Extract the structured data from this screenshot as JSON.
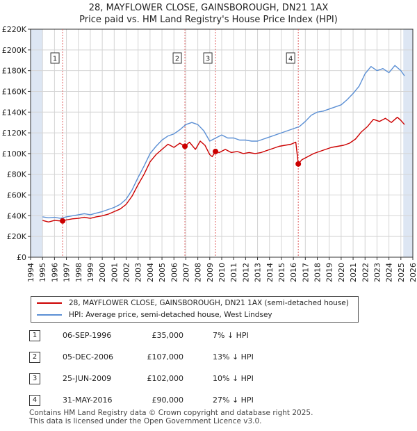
{
  "header": {
    "title": "28, MAYFLOWER CLOSE, GAINSBOROUGH, DN21 1AX",
    "subtitle": "Price paid vs. HM Land Registry's House Price Index (HPI)"
  },
  "colors": {
    "property": "#cc0000",
    "hpi": "#5b8fd4",
    "shade": "#dde6f3",
    "marker_line": "#e06060"
  },
  "chart_data": {
    "type": "line",
    "ylim": [
      0,
      220000
    ],
    "xlim": [
      1994.0,
      2026.0
    ],
    "y_ticks": [
      0,
      20000,
      40000,
      60000,
      80000,
      100000,
      120000,
      140000,
      160000,
      180000,
      200000,
      220000
    ],
    "y_tick_labels": [
      "£0",
      "£20K",
      "£40K",
      "£60K",
      "£80K",
      "£100K",
      "£120K",
      "£140K",
      "£160K",
      "£180K",
      "£200K",
      "£220K"
    ],
    "x_ticks": [
      1994,
      1995,
      1996,
      1997,
      1998,
      1999,
      2000,
      2001,
      2002,
      2003,
      2004,
      2005,
      2006,
      2007,
      2008,
      2009,
      2010,
      2011,
      2012,
      2013,
      2014,
      2015,
      2016,
      2017,
      2018,
      2019,
      2020,
      2021,
      2022,
      2023,
      2024,
      2025,
      2026
    ],
    "x_tick_labels": [
      "1994",
      "1995",
      "1996",
      "1997",
      "1998",
      "1999",
      "2000",
      "2001",
      "2002",
      "2003",
      "2004",
      "2005",
      "2006",
      "2007",
      "2008",
      "2009",
      "2010",
      "2011",
      "2012",
      "2013",
      "2014",
      "2015",
      "2016",
      "2017",
      "2018",
      "2019",
      "2020",
      "2021",
      "2022",
      "2023",
      "2024",
      "2025",
      "2026"
    ],
    "shaded_ranges": [
      [
        1994.0,
        1995.0
      ],
      [
        2025.2,
        2026.0
      ]
    ],
    "series": [
      {
        "name": "28, MAYFLOWER CLOSE, GAINSBOROUGH, DN21 1AX (semi-detached house)",
        "x": [
          1995.0,
          1995.5,
          1996.0,
          1996.5,
          1996.68,
          1997.0,
          1997.5,
          1998.0,
          1998.5,
          1999.0,
          1999.5,
          2000.0,
          2000.5,
          2001.0,
          2001.5,
          2002.0,
          2002.5,
          2003.0,
          2003.5,
          2004.0,
          2004.5,
          2005.0,
          2005.5,
          2006.0,
          2006.5,
          2006.92,
          2007.3,
          2007.8,
          2008.2,
          2008.6,
          2009.0,
          2009.2,
          2009.48,
          2009.8,
          2010.3,
          2010.8,
          2011.3,
          2011.8,
          2012.3,
          2012.8,
          2013.3,
          2013.8,
          2014.3,
          2014.8,
          2015.3,
          2015.8,
          2016.2,
          2016.41,
          2016.7,
          2017.2,
          2017.7,
          2018.2,
          2018.7,
          2019.2,
          2019.7,
          2020.2,
          2020.7,
          2021.2,
          2021.7,
          2022.2,
          2022.7,
          2023.2,
          2023.7,
          2024.2,
          2024.7,
          2025.0,
          2025.3
        ],
        "values": [
          35500,
          34000,
          35500,
          35000,
          35000,
          36000,
          37000,
          37500,
          38500,
          37500,
          39000,
          40000,
          41500,
          44000,
          46500,
          51000,
          59000,
          70000,
          80000,
          92000,
          99000,
          104000,
          109000,
          106000,
          110000,
          107000,
          111000,
          104000,
          112000,
          108000,
          99000,
          97000,
          102000,
          101000,
          104000,
          101000,
          102000,
          100000,
          101000,
          100000,
          101000,
          103000,
          105000,
          107000,
          108000,
          109000,
          111000,
          90000,
          94000,
          97000,
          100000,
          102000,
          104000,
          106000,
          107000,
          108000,
          110000,
          114000,
          121000,
          126000,
          133000,
          131000,
          134000,
          130000,
          135000,
          132000,
          128000
        ]
      },
      {
        "name": "HPI: Average price, semi-detached house, West Lindsey",
        "x": [
          1995.0,
          1995.5,
          1996.0,
          1996.5,
          1997.0,
          1997.5,
          1998.0,
          1998.5,
          1999.0,
          1999.5,
          2000.0,
          2000.5,
          2001.0,
          2001.5,
          2002.0,
          2002.5,
          2003.0,
          2003.5,
          2004.0,
          2004.5,
          2005.0,
          2005.5,
          2006.0,
          2006.5,
          2007.0,
          2007.5,
          2008.0,
          2008.5,
          2009.0,
          2009.5,
          2010.0,
          2010.5,
          2011.0,
          2011.5,
          2012.0,
          2012.5,
          2013.0,
          2013.5,
          2014.0,
          2014.5,
          2015.0,
          2015.5,
          2016.0,
          2016.5,
          2017.0,
          2017.5,
          2018.0,
          2018.5,
          2019.0,
          2019.5,
          2020.0,
          2020.5,
          2021.0,
          2021.5,
          2022.0,
          2022.5,
          2023.0,
          2023.5,
          2024.0,
          2024.5,
          2025.0,
          2025.3
        ],
        "values": [
          39000,
          38000,
          38500,
          37500,
          39000,
          40000,
          41000,
          42000,
          41000,
          42500,
          44000,
          46000,
          48000,
          51000,
          56000,
          65000,
          77000,
          88000,
          100000,
          107000,
          113000,
          117000,
          119000,
          123000,
          128000,
          130000,
          128000,
          122000,
          112000,
          115000,
          118000,
          115000,
          115000,
          113000,
          113000,
          112000,
          112000,
          114000,
          116000,
          118000,
          120000,
          122000,
          124000,
          126000,
          131000,
          137000,
          140000,
          141000,
          143000,
          145000,
          147000,
          152000,
          158000,
          165000,
          177000,
          184000,
          180000,
          182000,
          178000,
          185000,
          180000,
          175000
        ]
      }
    ],
    "sales": [
      {
        "label": "1",
        "x": 1996.68,
        "price": 35000
      },
      {
        "label": "2",
        "x": 2006.92,
        "price": 107000
      },
      {
        "label": "3",
        "x": 2009.48,
        "price": 102000
      },
      {
        "label": "4",
        "x": 2016.41,
        "price": 90000
      }
    ]
  },
  "legend": {
    "property": "28, MAYFLOWER CLOSE, GAINSBOROUGH, DN21 1AX (semi-detached house)",
    "hpi": "HPI: Average price, semi-detached house, West Lindsey"
  },
  "transactions": [
    {
      "num": "1",
      "date": "06-SEP-1996",
      "price": "£35,000",
      "hpi": "7% ↓ HPI"
    },
    {
      "num": "2",
      "date": "05-DEC-2006",
      "price": "£107,000",
      "hpi": "13% ↓ HPI"
    },
    {
      "num": "3",
      "date": "25-JUN-2009",
      "price": "£102,000",
      "hpi": "10% ↓ HPI"
    },
    {
      "num": "4",
      "date": "31-MAY-2016",
      "price": "£90,000",
      "hpi": "27% ↓ HPI"
    }
  ],
  "footer": {
    "line1": "Contains HM Land Registry data © Crown copyright and database right 2025.",
    "line2": "This data is licensed under the Open Government Licence v3.0."
  }
}
